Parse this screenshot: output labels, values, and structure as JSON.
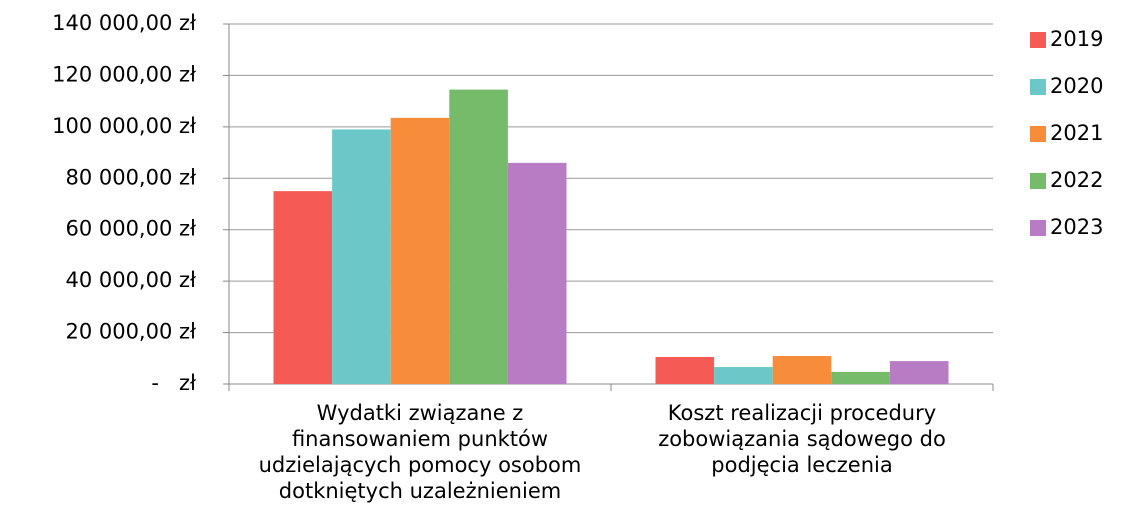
{
  "chart_data": {
    "type": "bar",
    "categories": [
      "Wydatki związane z finansowaniem punktów udzielających pomocy osobom dotkniętych uzależnieniem",
      "Koszt realizacji procedury zobowiązania sądowego do podjęcia leczenia"
    ],
    "series": [
      {
        "name": "2019",
        "color": "#f55a55",
        "values": [
          75000,
          10500
        ]
      },
      {
        "name": "2020",
        "color": "#6cc8c8",
        "values": [
          99000,
          6600
        ]
      },
      {
        "name": "2021",
        "color": "#f78c3a",
        "values": [
          103500,
          10900
        ]
      },
      {
        "name": "2022",
        "color": "#76bb6a",
        "values": [
          114500,
          4700
        ]
      },
      {
        "name": "2023",
        "color": "#b77cc4",
        "values": [
          86000,
          8900
        ]
      }
    ],
    "ylim": [
      0,
      140000
    ],
    "yticks": [
      {
        "value": 0,
        "label": "-   zł"
      },
      {
        "value": 20000,
        "label": "20 000,00 zł"
      },
      {
        "value": 40000,
        "label": "40 000,00 zł"
      },
      {
        "value": 60000,
        "label": "60 000,00 zł"
      },
      {
        "value": 80000,
        "label": "80 000,00 zł"
      },
      {
        "value": 100000,
        "label": "100 000,00 zł"
      },
      {
        "value": 120000,
        "label": "120 000,00 zł"
      },
      {
        "value": 140000,
        "label": "140 000,00 zł"
      }
    ],
    "grid": true,
    "legend": "right"
  }
}
